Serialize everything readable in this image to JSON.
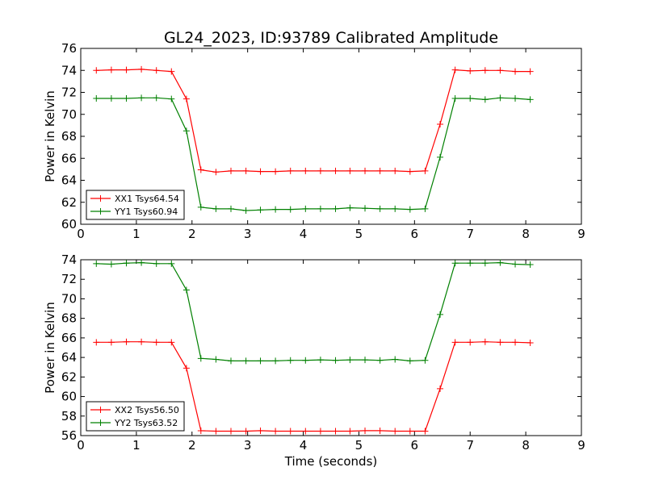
{
  "chart_data": [
    {
      "type": "line",
      "title": "GL24_2023, ID:93789 Calibrated Amplitude",
      "xlabel": "",
      "ylabel": "Power in Kelvin",
      "xlim": [
        0,
        9
      ],
      "ylim": [
        60,
        76
      ],
      "xticks": [
        0,
        1,
        2,
        3,
        4,
        5,
        6,
        7,
        8,
        9
      ],
      "yticks": [
        60,
        62,
        64,
        66,
        68,
        70,
        72,
        74,
        76
      ],
      "grid": false,
      "legend_position": "lower-left",
      "x": [
        0.28,
        0.55,
        0.82,
        1.09,
        1.36,
        1.63,
        1.9,
        2.16,
        2.43,
        2.7,
        2.97,
        3.23,
        3.5,
        3.77,
        4.04,
        4.31,
        4.58,
        4.84,
        5.11,
        5.38,
        5.65,
        5.92,
        6.19,
        6.46,
        6.73,
        7.0,
        7.27,
        7.54,
        7.81,
        8.08
      ],
      "series": [
        {
          "name": "XX1 Tsys64.54",
          "color": "#ff0000",
          "values": [
            74.0,
            74.05,
            74.05,
            74.1,
            74.0,
            73.9,
            71.4,
            64.95,
            64.75,
            64.85,
            64.85,
            64.8,
            64.8,
            64.85,
            64.85,
            64.85,
            64.85,
            64.85,
            64.85,
            64.85,
            64.85,
            64.8,
            64.85,
            69.1,
            74.05,
            73.95,
            74.0,
            74.0,
            73.9,
            73.9
          ]
        },
        {
          "name": "YY1 Tsys60.94",
          "color": "#008000",
          "values": [
            71.45,
            71.45,
            71.45,
            71.5,
            71.5,
            71.4,
            68.5,
            61.55,
            61.4,
            61.4,
            61.25,
            61.3,
            61.35,
            61.35,
            61.4,
            61.4,
            61.4,
            61.5,
            61.45,
            61.4,
            61.4,
            61.35,
            61.4,
            66.1,
            71.45,
            71.45,
            71.35,
            71.5,
            71.45,
            71.35
          ]
        }
      ]
    },
    {
      "type": "line",
      "title": "",
      "xlabel": "Time (seconds)",
      "ylabel": "Power in Kelvin",
      "xlim": [
        0,
        9
      ],
      "ylim": [
        56,
        74
      ],
      "xticks": [
        0,
        1,
        2,
        3,
        4,
        5,
        6,
        7,
        8,
        9
      ],
      "yticks": [
        56,
        58,
        60,
        62,
        64,
        66,
        68,
        70,
        72,
        74
      ],
      "grid": false,
      "legend_position": "lower-left",
      "x": [
        0.28,
        0.55,
        0.82,
        1.09,
        1.36,
        1.63,
        1.9,
        2.16,
        2.43,
        2.7,
        2.97,
        3.23,
        3.5,
        3.77,
        4.04,
        4.31,
        4.58,
        4.84,
        5.11,
        5.38,
        5.65,
        5.92,
        6.19,
        6.46,
        6.73,
        7.0,
        7.27,
        7.54,
        7.81,
        8.08
      ],
      "series": [
        {
          "name": "XX2 Tsys56.50",
          "color": "#ff0000",
          "values": [
            65.55,
            65.55,
            65.6,
            65.6,
            65.55,
            65.55,
            62.9,
            56.5,
            56.45,
            56.45,
            56.45,
            56.5,
            56.45,
            56.45,
            56.45,
            56.45,
            56.45,
            56.45,
            56.5,
            56.5,
            56.45,
            56.45,
            56.45,
            60.8,
            65.55,
            65.55,
            65.6,
            65.55,
            65.55,
            65.5
          ]
        },
        {
          "name": "YY2 Tsys63.52",
          "color": "#008000",
          "values": [
            73.6,
            73.55,
            73.65,
            73.7,
            73.6,
            73.6,
            70.9,
            63.9,
            63.8,
            63.65,
            63.65,
            63.65,
            63.65,
            63.7,
            63.7,
            63.75,
            63.7,
            63.75,
            63.75,
            63.7,
            63.8,
            63.65,
            63.7,
            68.4,
            73.65,
            73.65,
            73.65,
            73.7,
            73.55,
            73.5
          ]
        }
      ]
    }
  ]
}
